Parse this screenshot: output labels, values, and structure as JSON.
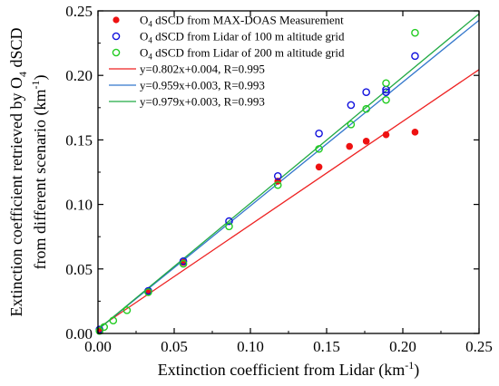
{
  "chart_data": {
    "type": "scatter",
    "xlabel": "Extinction coefficient  from Lidar (km",
    "xlabel_sup": "-1",
    "xlabel_end": ")",
    "ylabel_line1_pre": "Extinction coefficient retrieved by O",
    "ylabel_line1_sub": "4",
    "ylabel_line1_post": " dSCD",
    "ylabel_line2_pre": "from different scenario (km",
    "ylabel_line2_sup": "-1",
    "ylabel_line2_post": ")",
    "xlim": [
      0.0,
      0.25
    ],
    "ylim": [
      0.0,
      0.25
    ],
    "x_ticks": [
      "0.00",
      "0.05",
      "0.10",
      "0.15",
      "0.20",
      "0.25"
    ],
    "y_ticks": [
      "0.00",
      "0.05",
      "0.10",
      "0.15",
      "0.20",
      "0.25"
    ],
    "grid": false,
    "legend_position": "top-left",
    "series": [
      {
        "name_pre": "O",
        "name_sub": "4",
        "name_post": " dSCD from MAX-DOAS Measurement",
        "marker": "filled-circle",
        "color": "#ee1111",
        "x": [
          0.001,
          0.033,
          0.056,
          0.118,
          0.145,
          0.165,
          0.176,
          0.189,
          0.208
        ],
        "y": [
          0.002,
          0.032,
          0.055,
          0.118,
          0.129,
          0.145,
          0.149,
          0.154,
          0.156
        ]
      },
      {
        "name_pre": "O",
        "name_sub": "4",
        "name_post": " dSCD from Lidar of 100 m altitude grid",
        "marker": "open-circle",
        "color": "#1111dd",
        "x": [
          0.001,
          0.033,
          0.056,
          0.086,
          0.118,
          0.145,
          0.166,
          0.176,
          0.189,
          0.189,
          0.208
        ],
        "y": [
          0.003,
          0.033,
          0.056,
          0.087,
          0.122,
          0.155,
          0.177,
          0.187,
          0.187,
          0.189,
          0.215
        ]
      },
      {
        "name_pre": "O",
        "name_sub": "4",
        "name_post": " dSCD from Lidar of 200 m altitude grid",
        "marker": "open-circle",
        "color": "#22cc22",
        "x": [
          0.001,
          0.004,
          0.01,
          0.019,
          0.033,
          0.056,
          0.086,
          0.118,
          0.145,
          0.166,
          0.176,
          0.189,
          0.189,
          0.208
        ],
        "y": [
          0.002,
          0.005,
          0.01,
          0.018,
          0.032,
          0.054,
          0.083,
          0.115,
          0.143,
          0.162,
          0.174,
          0.181,
          0.194,
          0.233
        ]
      }
    ],
    "fits": [
      {
        "label": "y=0.802x+0.004,  R=0.995",
        "slope": 0.802,
        "intercept": 0.004,
        "color": "#ee2222"
      },
      {
        "label": "y=0.959x+0.003,  R=0.993",
        "slope": 0.959,
        "intercept": 0.003,
        "color": "#3377cc"
      },
      {
        "label": "y=0.979x+0.003,  R=0.993",
        "slope": 0.979,
        "intercept": 0.003,
        "color": "#22aa44"
      }
    ]
  }
}
